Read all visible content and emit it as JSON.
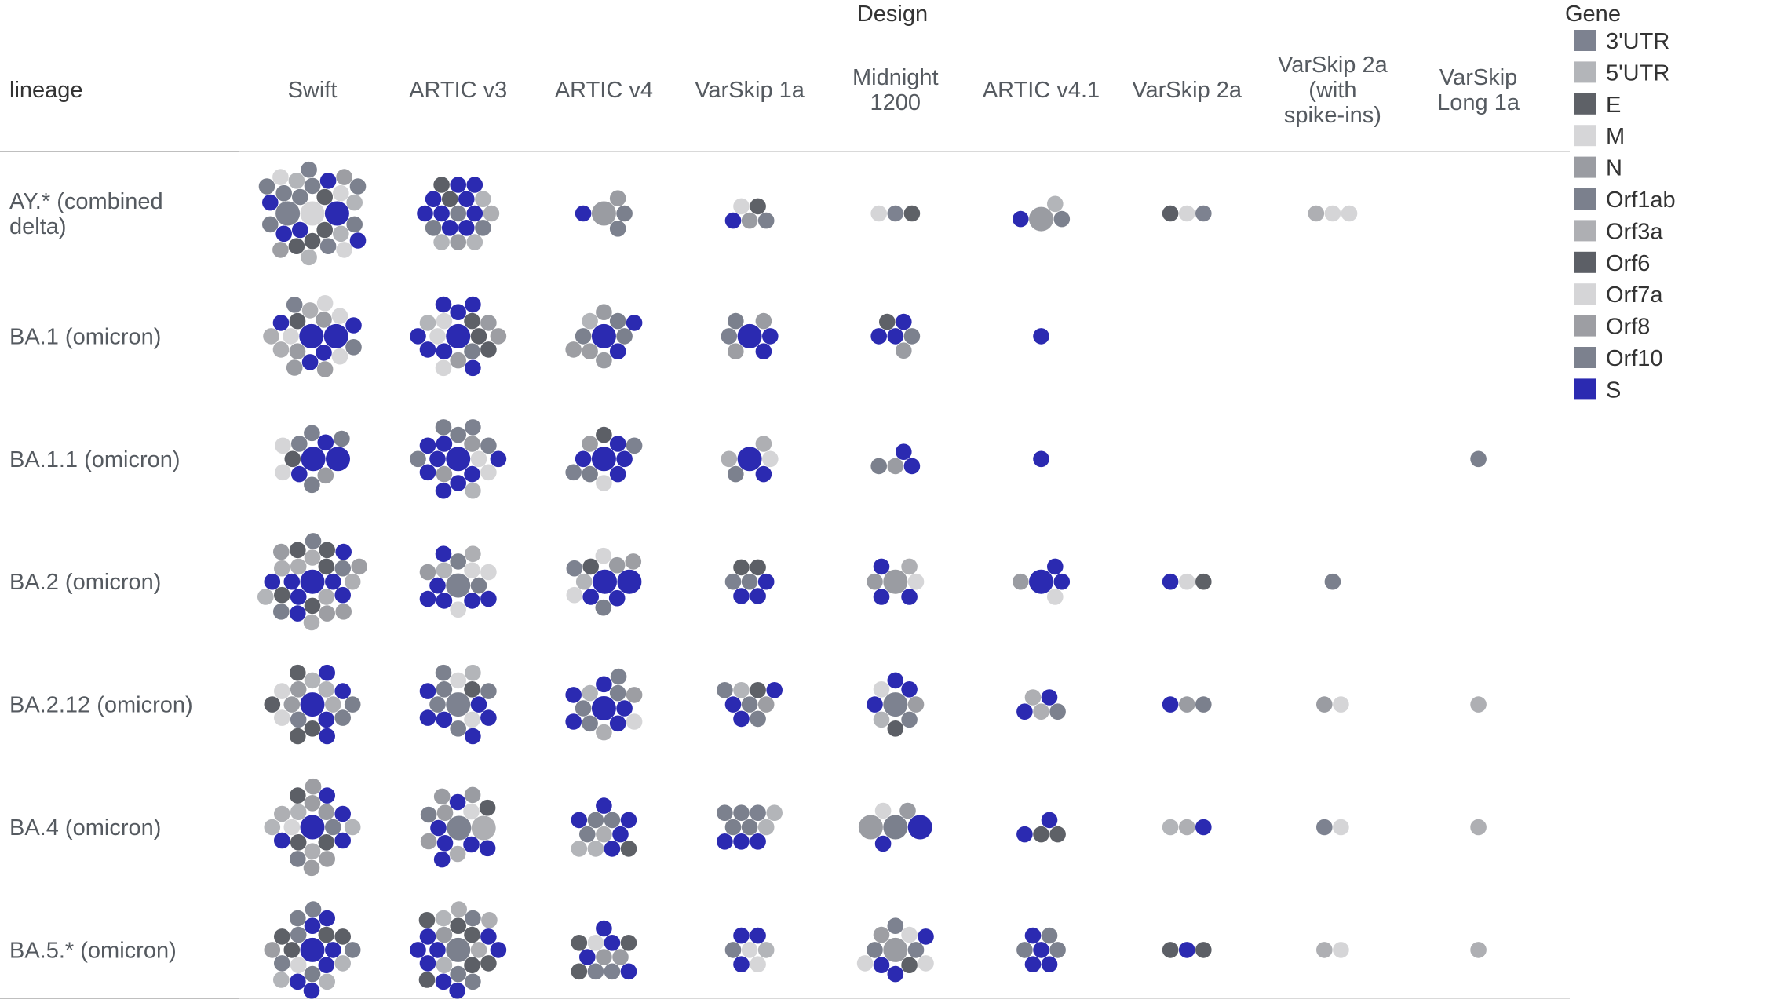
{
  "chart_data": {
    "type": "packed-bubble-matrix",
    "title": "",
    "column_group_title": "Design",
    "row_header": "lineage",
    "columns": [
      "Swift",
      "ARTIC v3",
      "ARTIC v4",
      "VarSkip 1a",
      "Midnight 1200",
      "ARTIC v4.1",
      "VarSkip 2a",
      "VarSkip 2a (with spike-ins)",
      "VarSkip Long 1a"
    ],
    "column_lines": [
      [
        "Swift"
      ],
      [
        "ARTIC v3"
      ],
      [
        "ARTIC v4"
      ],
      [
        "VarSkip 1a"
      ],
      [
        "Midnight",
        "1200"
      ],
      [
        "ARTIC v4.1"
      ],
      [
        "VarSkip 2a"
      ],
      [
        "VarSkip 2a",
        "(with",
        "spike-ins)"
      ],
      [
        "VarSkip",
        "Long 1a"
      ]
    ],
    "rows": [
      "AY.* (combined delta)",
      "BA.1 (omicron)",
      "BA.1.1 (omicron)",
      "BA.2 (omicron)",
      "BA.2.12 (omicron)",
      "BA.4 (omicron)",
      "BA.5.* (omicron)"
    ],
    "row_lines": [
      [
        "AY.* (combined",
        "delta)"
      ],
      [
        "BA.1 (omicron)"
      ],
      [
        "BA.1.1 (omicron)"
      ],
      [
        "BA.2 (omicron)"
      ],
      [
        "BA.2.12 (omicron)"
      ],
      [
        "BA.4 (omicron)"
      ],
      [
        "BA.5.* (omicron)"
      ]
    ],
    "legend": {
      "title": "Gene",
      "position": "top-right",
      "items": [
        {
          "name": "3'UTR",
          "color": "#7d8290"
        },
        {
          "name": "5'UTR",
          "color": "#b3b5b9"
        },
        {
          "name": "E",
          "color": "#5e6167"
        },
        {
          "name": "M",
          "color": "#d6d6d8"
        },
        {
          "name": "N",
          "color": "#9a9ca2"
        },
        {
          "name": "Orf1ab",
          "color": "#7b808d"
        },
        {
          "name": "Orf3a",
          "color": "#aeafb3"
        },
        {
          "name": "Orf6",
          "color": "#5c5f66"
        },
        {
          "name": "Orf7a",
          "color": "#d5d5d7"
        },
        {
          "name": "Orf8",
          "color": "#9d9ea3"
        },
        {
          "name": "Orf10",
          "color": "#7c818e"
        },
        {
          "name": "S",
          "color": "#2b2ab1"
        }
      ]
    },
    "bubble_sizes": {
      "small": 1,
      "medium": 2,
      "large": 3
    },
    "cells": [
      [
        {
          "n": 30,
          "s": 6,
          "big": 2,
          "large_genes": [
            "Orf7a",
            "3'UTR"
          ],
          "large_s": 1
        },
        {
          "n": 19,
          "s": 9,
          "big": 0
        },
        {
          "n": 5,
          "s": 1,
          "big": 1,
          "large_genes": [
            "N"
          ]
        },
        {
          "n": 5,
          "s": 1,
          "big": 0,
          "light": 1
        },
        {
          "n": 3,
          "s": 0,
          "big": 0,
          "light": 1
        },
        {
          "n": 4,
          "s": 1,
          "big": 1,
          "large_genes": [
            "N"
          ]
        },
        {
          "n": 3,
          "s": 0,
          "big": 0,
          "light": 1
        },
        {
          "n": 3,
          "s": 0,
          "big": 0,
          "light": 1
        },
        {
          "n": 0
        }
      ],
      [
        {
          "n": 20,
          "s": 6,
          "big": 0,
          "large_s": 2
        },
        {
          "n": 19,
          "s": 8,
          "big": 0,
          "large_s": 1
        },
        {
          "n": 11,
          "s": 3,
          "big": 0,
          "large_s": 1
        },
        {
          "n": 7,
          "s": 3,
          "big": 0,
          "large_s": 1
        },
        {
          "n": 6,
          "s": 3,
          "big": 0
        },
        {
          "n": 1,
          "s": 1,
          "big": 0
        },
        {
          "n": 0
        },
        {
          "n": 0
        },
        {
          "n": 0
        }
      ],
      [
        {
          "n": 12,
          "s": 4,
          "big": 0,
          "large_s": 2
        },
        {
          "n": 19,
          "s": 9,
          "big": 0,
          "large_s": 1
        },
        {
          "n": 11,
          "s": 5,
          "big": 0,
          "large_s": 1
        },
        {
          "n": 6,
          "s": 2,
          "big": 0,
          "large_s": 1
        },
        {
          "n": 4,
          "s": 2,
          "big": 0
        },
        {
          "n": 1,
          "s": 1,
          "big": 0
        },
        {
          "n": 0
        },
        {
          "n": 0
        },
        {
          "n": 1,
          "s": 0,
          "big": 0,
          "gene": "Orf1ab"
        }
      ],
      [
        {
          "n": 27,
          "s": 8,
          "big": 0,
          "large_s": 1
        },
        {
          "n": 15,
          "s": 6,
          "big": 1,
          "large_genes": [
            "3'UTR"
          ]
        },
        {
          "n": 12,
          "s": 4,
          "big": 0,
          "large_s": 2
        },
        {
          "n": 7,
          "s": 3,
          "big": 0
        },
        {
          "n": 7,
          "s": 3,
          "big": 1,
          "large_genes": [
            "N"
          ]
        },
        {
          "n": 5,
          "s": 3,
          "big": 0,
          "large_s": 1
        },
        {
          "n": 3,
          "s": 1,
          "big": 0
        },
        {
          "n": 1,
          "s": 0,
          "big": 0,
          "gene": "Orf1ab"
        },
        {
          "n": 0
        }
      ],
      [
        {
          "n": 19,
          "s": 5,
          "big": 0,
          "large_s": 1
        },
        {
          "n": 16,
          "s": 6,
          "big": 1,
          "large_genes": [
            "3'UTR"
          ]
        },
        {
          "n": 14,
          "s": 6,
          "big": 0,
          "large_s": 1
        },
        {
          "n": 9,
          "s": 3,
          "big": 0
        },
        {
          "n": 9,
          "s": 3,
          "big": 1,
          "large_genes": [
            "3'UTR"
          ]
        },
        {
          "n": 5,
          "s": 2,
          "big": 0
        },
        {
          "n": 3,
          "s": 1,
          "big": 0
        },
        {
          "n": 2,
          "s": 0,
          "big": 0,
          "light": 1
        },
        {
          "n": 1,
          "s": 0,
          "big": 0,
          "gene": "Orf3a"
        }
      ],
      [
        {
          "n": 21,
          "s": 5,
          "big": 0,
          "large_s": 1
        },
        {
          "n": 16,
          "s": 6,
          "big": 2,
          "large_genes": [
            "3'UTR",
            "Orf3a"
          ]
        },
        {
          "n": 12,
          "s": 5,
          "big": 0
        },
        {
          "n": 10,
          "s": 3,
          "big": 0
        },
        {
          "n": 6,
          "s": 2,
          "big": 2,
          "large_genes": [
            "N",
            "Orf1ab"
          ],
          "large_s": 1
        },
        {
          "n": 4,
          "s": 2,
          "big": 0
        },
        {
          "n": 3,
          "s": 1,
          "big": 0
        },
        {
          "n": 2,
          "s": 0,
          "big": 0,
          "light": 1
        },
        {
          "n": 1,
          "s": 0,
          "big": 0,
          "gene": "Orf3a"
        }
      ],
      [
        {
          "n": 22,
          "s": 7,
          "big": 0,
          "large_s": 1
        },
        {
          "n": 24,
          "s": 8,
          "big": 1,
          "large_genes": [
            "Orf1ab"
          ]
        },
        {
          "n": 12,
          "s": 4,
          "big": 0
        },
        {
          "n": 7,
          "s": 3,
          "big": 0
        },
        {
          "n": 12,
          "s": 3,
          "big": 1,
          "large_genes": [
            "N"
          ]
        },
        {
          "n": 7,
          "s": 4,
          "big": 0
        },
        {
          "n": 3,
          "s": 1,
          "big": 0
        },
        {
          "n": 2,
          "s": 0,
          "big": 0,
          "light": 1
        },
        {
          "n": 1,
          "s": 0,
          "big": 0,
          "gene": "Orf3a"
        }
      ]
    ]
  }
}
